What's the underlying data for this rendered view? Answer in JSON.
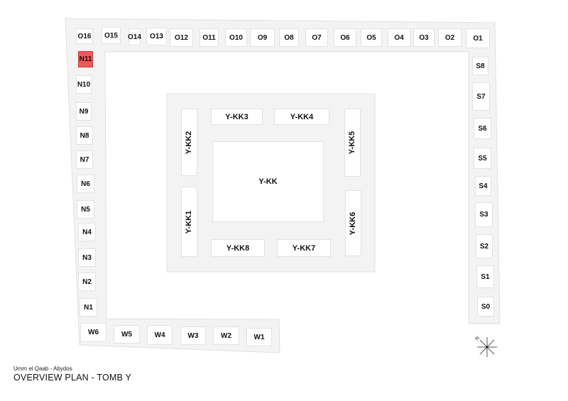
{
  "plan": {
    "subtitle": "Umm el Qaab - Abydos",
    "title": "OVERVIEW PLAN - TOMB Y",
    "highlight_color": "#f55656",
    "north_label": "N",
    "tombs": {
      "O16": "O16",
      "O15": "O15",
      "O14": "O14",
      "O13": "O13",
      "O12": "O12",
      "O11": "O11",
      "O10": "O10",
      "O9": "O9",
      "O8": "O8",
      "O7": "O7",
      "O6": "O6",
      "O5": "O5",
      "O4": "O4",
      "O3": "O3",
      "O2": "O2",
      "O1": "O1",
      "N11": "N11",
      "N10": "N10",
      "N9": "N9",
      "N8": "N8",
      "N7": "N7",
      "N6": "N6",
      "N5": "N5",
      "N4": "N4",
      "N3": "N3",
      "N2": "N2",
      "N1": "N1",
      "W6": "W6",
      "W5": "W5",
      "W4": "W4",
      "W3": "W3",
      "W2": "W2",
      "W1": "W1",
      "S8": "S8",
      "S7": "S7",
      "S6": "S6",
      "S5": "S5",
      "S4": "S4",
      "S3": "S3",
      "S2": "S2",
      "S1": "S1",
      "S0": "S0",
      "YKK": "Y-KK",
      "YKK1": "Y-KK1",
      "YKK2": "Y-KK2",
      "YKK3": "Y-KK3",
      "YKK4": "Y-KK4",
      "YKK5": "Y-KK5",
      "YKK6": "Y-KK6",
      "YKK7": "Y-KK7",
      "YKK8": "Y-KK8"
    },
    "highlighted": "N11"
  }
}
